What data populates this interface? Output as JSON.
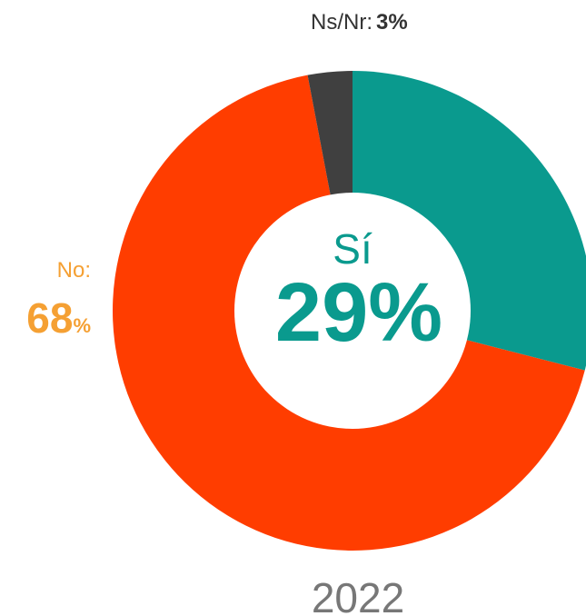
{
  "chart_data": {
    "type": "donut",
    "title": "2022",
    "categories": [
      "Sí",
      "No:",
      "Ns/Nr:"
    ],
    "values": [
      29,
      68,
      3
    ],
    "value_labels": [
      "29%",
      "68%",
      "3%"
    ],
    "colors": [
      "#0a9a8e",
      "#ff3d00",
      "#404040"
    ]
  }
}
